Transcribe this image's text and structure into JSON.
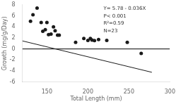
{
  "chart_data": {
    "type": "scatter",
    "xlabel": "Total Length (mm)",
    "ylabel": "Growth (mg/g/Day)",
    "annotations": [
      "Y= 5.78 - 0.036X",
      "P< 0.001",
      "R²=0.59",
      "N=23"
    ],
    "xlim": [
      120,
      300
    ],
    "xticks": [
      150,
      200,
      250,
      300
    ],
    "ylim": [
      -6,
      8
    ],
    "yticks": [
      -6,
      -4,
      -2,
      0,
      2,
      4,
      6,
      8
    ],
    "grid": false,
    "series": [
      {
        "type": "scatter",
        "color": "#1a1a1a",
        "x": [
          130,
          133,
          138,
          143,
          145,
          148,
          150,
          152,
          155,
          158,
          160,
          163,
          165,
          185,
          195,
          200,
          203,
          205,
          208,
          213,
          223,
          248,
          265
        ],
        "values": [
          5.0,
          6.2,
          7.4,
          4.8,
          3.2,
          3.5,
          4.8,
          2.6,
          2.7,
          4.0,
          3.3,
          2.5,
          2.5,
          1.2,
          1.9,
          1.55,
          1.9,
          1.6,
          1.5,
          1.7,
          1.55,
          1.2,
          -0.8
        ]
      },
      {
        "type": "line",
        "color": "#1a1a1a",
        "x": [
          120,
          278
        ],
        "values": [
          1.46,
          -4.228
        ]
      },
      {
        "type": "line",
        "color": "#000000",
        "x": [
          120,
          300
        ],
        "values": [
          0,
          0
        ]
      }
    ]
  }
}
